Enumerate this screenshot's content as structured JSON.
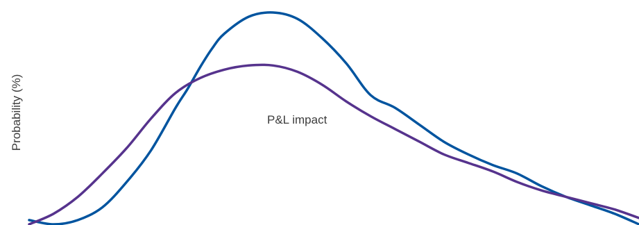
{
  "chart_data": {
    "type": "line",
    "title": "",
    "xlabel": "",
    "ylabel": "Probability (%)",
    "annotation": "P&L impact",
    "grid": false,
    "legend": "none",
    "xlim": [
      0,
      100
    ],
    "ylim": [
      0,
      100
    ],
    "series": [
      {
        "color": "#00549f",
        "x": [
          0,
          4,
          8,
          12,
          16,
          20,
          24,
          26,
          28,
          30,
          32,
          36,
          40,
          44,
          48,
          52,
          56,
          60,
          64,
          68,
          72,
          76,
          80,
          84,
          88,
          92,
          96,
          100
        ],
        "y": [
          2,
          0,
          2,
          8,
          20,
          35,
          55,
          64,
          74,
          83,
          90,
          98,
          100,
          97,
          88,
          76,
          61,
          55,
          47,
          39,
          33,
          28,
          24,
          18,
          13,
          9,
          5,
          0
        ]
      },
      {
        "color": "#56338d",
        "x": [
          0,
          4,
          8,
          12,
          16,
          20,
          24,
          28,
          32,
          36,
          40,
          44,
          48,
          52,
          56,
          60,
          64,
          68,
          72,
          76,
          80,
          84,
          88,
          92,
          96,
          100
        ],
        "y": [
          0,
          5,
          13,
          24,
          36,
          50,
          62,
          69,
          73,
          75,
          75,
          72,
          66,
          58,
          51,
          45,
          39,
          33,
          29,
          25,
          20,
          16,
          13,
          10,
          7,
          3
        ]
      }
    ]
  }
}
